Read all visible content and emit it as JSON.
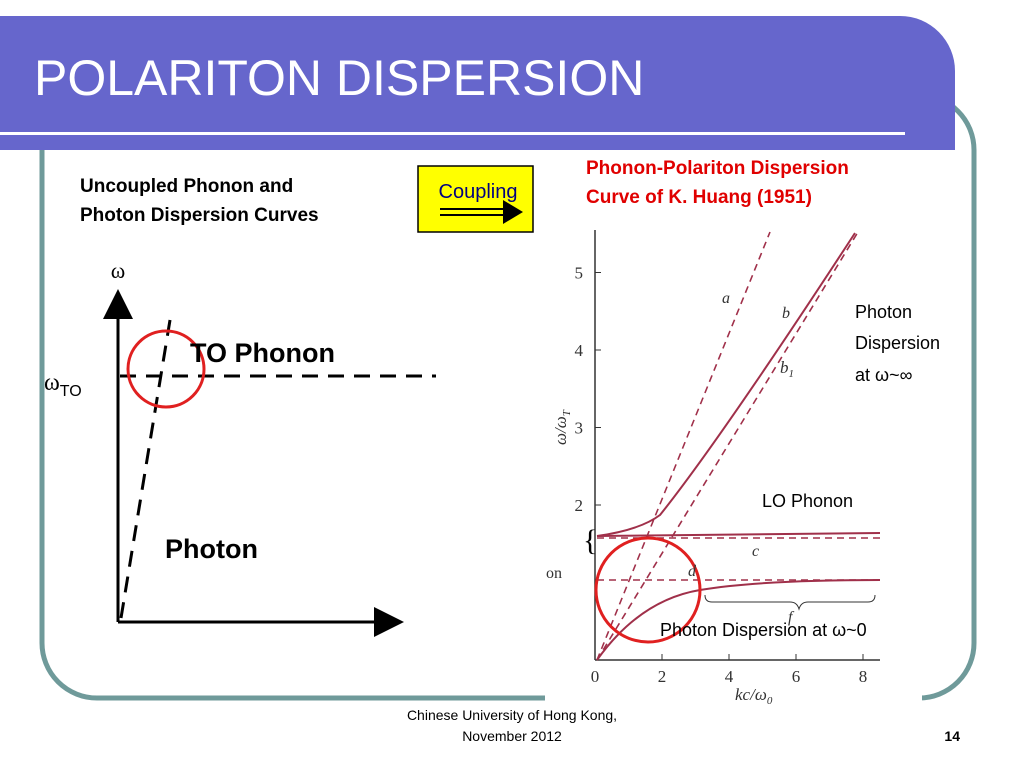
{
  "header": {
    "title": "POLARITON DISPERSION"
  },
  "left": {
    "heading_lines": [
      "Uncoupled Phonon and",
      "Photon Dispersion Curves"
    ],
    "omega": "ω",
    "omega_to": {
      "symbol": "ω",
      "subscript": "TO"
    },
    "to_phonon": "TO Phonon",
    "photon": "Photon"
  },
  "coupling": "Coupling",
  "right": {
    "heading_lines": [
      "Phonon-Polariton Dispersion",
      "Curve of K. Huang (1951)"
    ],
    "figure": {
      "x_ticks": [
        0,
        2,
        4,
        6,
        8
      ],
      "y_ticks": [
        2,
        3,
        4,
        5
      ],
      "x_label": {
        "text": "kc/ω",
        "subscript": "0"
      },
      "y_label": {
        "text": "ω/ω",
        "subscript": "T"
      },
      "curve_labels": {
        "a": "a",
        "b": "b",
        "b1": {
          "text": "b",
          "subscript": "1"
        },
        "c": "c",
        "d": "d",
        "f": "f",
        "on": "on"
      }
    },
    "annotations": {
      "photon_inf": [
        "Photon",
        "Dispersion",
        "at ω~∞"
      ],
      "lo_phonon": "LO Phonon",
      "photon_zero": "Photon Dispersion at ω~0"
    }
  },
  "footer": {
    "lines": [
      "Chinese University of Hong Kong,",
      "November 2012"
    ],
    "page": "14"
  }
}
